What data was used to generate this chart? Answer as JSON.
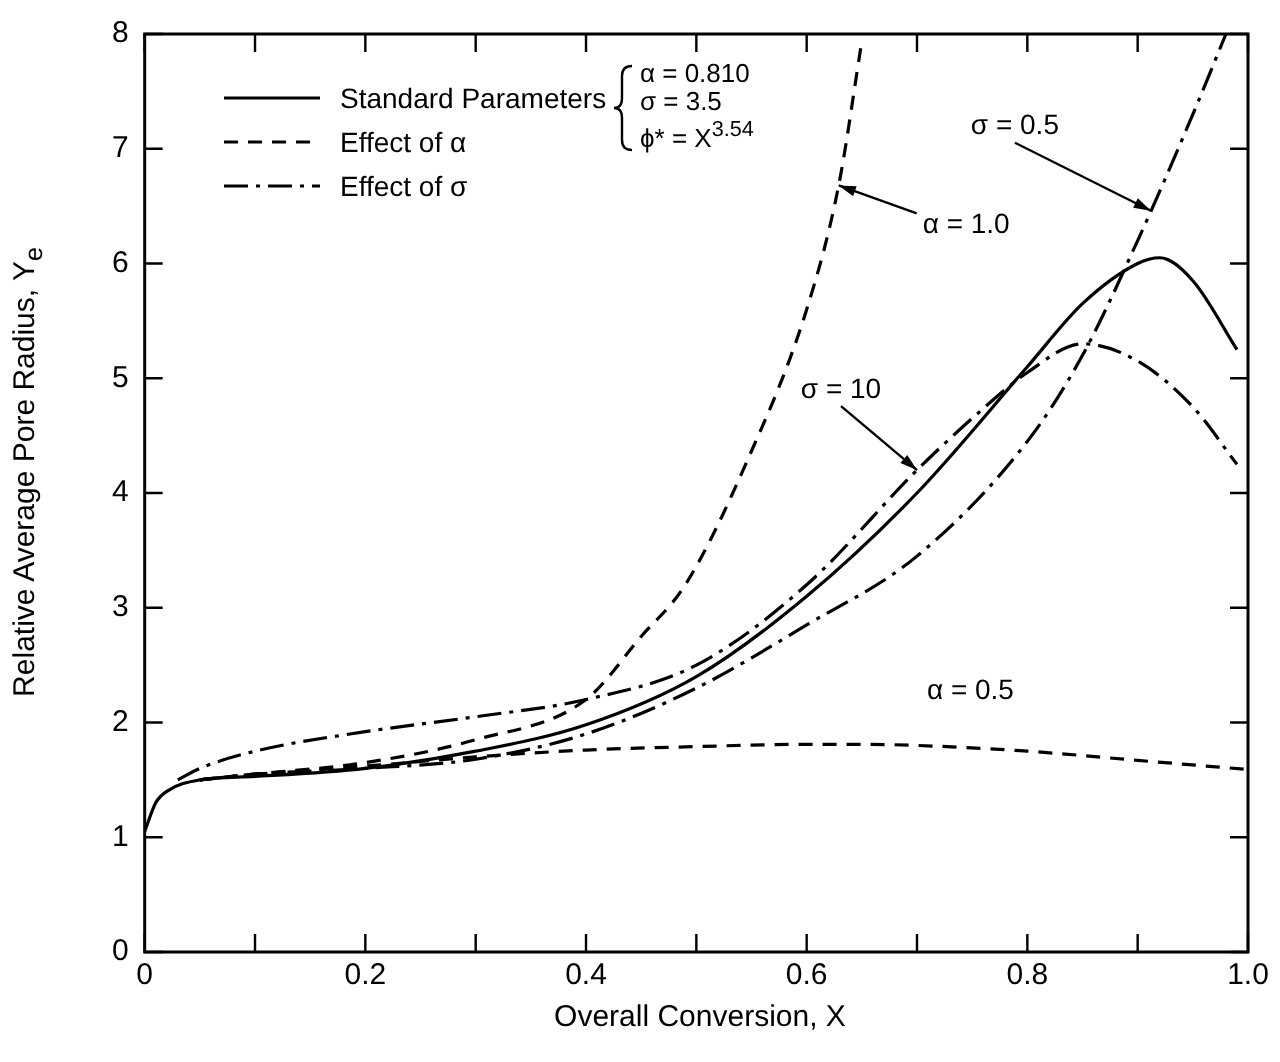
{
  "chart_data": {
    "type": "line",
    "xlabel": "Overall Conversion, X",
    "ylabel": "Relative Average Pore Radius, Y$_{e}$",
    "xlim": [
      0,
      1
    ],
    "ylim": [
      0,
      8
    ],
    "xticks": [
      0,
      {
        "value": 0.1,
        "label": null
      },
      0.2,
      {
        "value": 0.3,
        "label": null
      },
      0.4,
      {
        "value": 0.5,
        "label": null
      },
      0.6,
      {
        "value": 0.7,
        "label": null
      },
      0.8,
      {
        "value": 0.9,
        "label": null
      },
      {
        "value": 1,
        "label": "1.0"
      }
    ],
    "yticks": [
      0,
      1,
      2,
      3,
      4,
      5,
      6,
      7,
      8
    ],
    "legend": "top left",
    "marker": "none",
    "series": [
      {
        "name": "Standard Parameters",
        "color": "#000000",
        "line_style": "solid",
        "x": [
          0,
          0.01,
          0.02,
          0.05,
          0.1,
          0.2,
          0.3,
          0.4,
          0.5,
          0.6,
          0.7,
          0.8,
          0.85,
          0.9,
          0.92,
          0.95,
          0.99
        ],
        "values": [
          1.05,
          1.3,
          1.4,
          1.5,
          1.53,
          1.6,
          1.75,
          1.98,
          2.4,
          3.1,
          4.0,
          5.1,
          5.65,
          6.0,
          6.05,
          5.85,
          5.25
        ]
      },
      {
        "name": "Effect of α",
        "color": "#000000",
        "line_style": "dashed",
        "x": [
          0.05,
          0.1,
          0.2,
          0.3,
          0.4,
          0.45,
          0.49,
          0.547,
          0.6,
          0.629,
          0.65
        ],
        "values": [
          1.5,
          1.55,
          1.65,
          1.85,
          2.2,
          2.75,
          3.2,
          4.3,
          5.6,
          6.68,
          7.94
        ]
      },
      {
        "color": "#000000",
        "line_style": "dashed",
        "x": [
          0.05,
          0.1,
          0.2,
          0.3,
          0.4,
          0.5,
          0.6,
          0.65,
          0.7,
          0.8,
          0.9,
          1.0
        ],
        "values": [
          1.5,
          1.55,
          1.62,
          1.7,
          1.76,
          1.79,
          1.81,
          1.81,
          1.8,
          1.75,
          1.67,
          1.59
        ]
      },
      {
        "name": "Effect of σ",
        "color": "#000000",
        "line_style": "dashdot",
        "x": [
          0.03,
          0.05,
          0.1,
          0.2,
          0.3,
          0.4,
          0.5,
          0.6,
          0.7,
          0.75,
          0.8,
          0.85,
          0.9,
          0.95,
          0.99
        ],
        "values": [
          1.5,
          1.6,
          1.75,
          1.92,
          2.05,
          2.2,
          2.5,
          3.2,
          4.2,
          4.65,
          5.05,
          5.3,
          5.15,
          4.75,
          4.25
        ]
      },
      {
        "color": "#000000",
        "line_style": "dashdot",
        "x": [
          0.05,
          0.1,
          0.2,
          0.3,
          0.4,
          0.5,
          0.6,
          0.7,
          0.8,
          0.85,
          0.9,
          0.95,
          0.98
        ],
        "values": [
          1.5,
          1.55,
          1.6,
          1.68,
          1.9,
          2.3,
          2.85,
          3.45,
          4.45,
          5.2,
          6.2,
          7.3,
          8.0
        ]
      }
    ],
    "annotations": [
      "α = 0.810",
      "σ = 3.5",
      "ϕ* = X$^{3.54}$",
      {
        "text": "α = 1.0",
        "x": 0.629,
        "y": 6.68
      },
      {
        "text": "σ = 0.5",
        "x": 0.912,
        "y": 6.46
      },
      {
        "text": "σ = 10",
        "x": 0.7,
        "y": 4.2
      },
      {
        "text": "α = 0.5",
        "x": 0.83,
        "y": 1.75
      }
    ]
  }
}
